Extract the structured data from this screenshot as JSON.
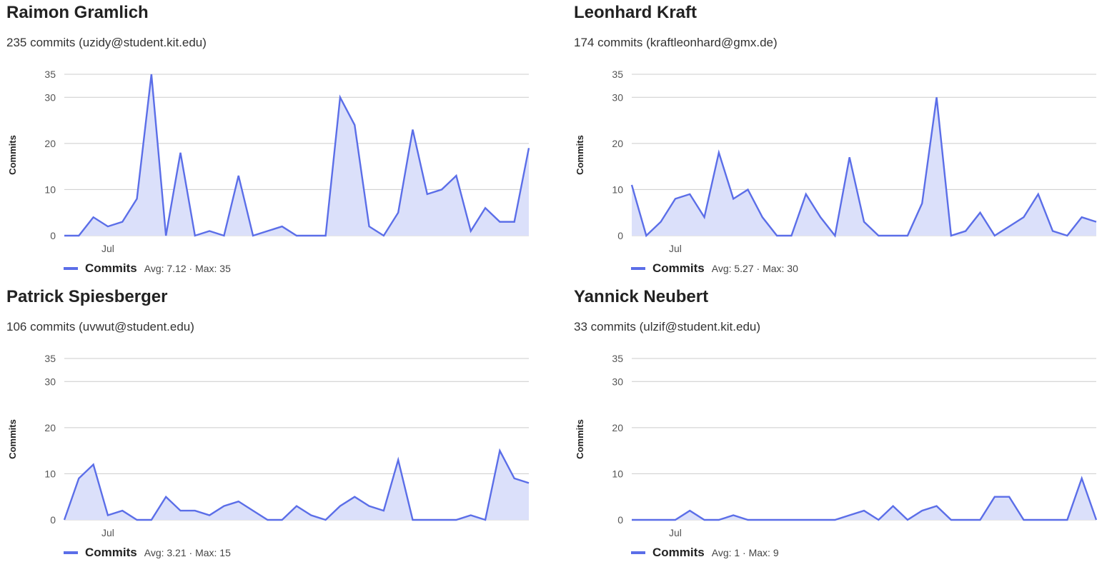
{
  "colors": {
    "line": "#5b6ee8",
    "fill": "#dbe0fa",
    "grid": "#cccccc"
  },
  "chart_data": [
    {
      "type": "area",
      "title": "Raimon Gramlich",
      "subtitle": "235 commits (uzidy@student.kit.edu)",
      "ylabel": "Commits",
      "xlabel": "",
      "ylim": [
        0,
        35
      ],
      "yticks": [
        0,
        10,
        20,
        30,
        35
      ],
      "xtick_labels": [
        {
          "index": 3,
          "label": "Jul"
        }
      ],
      "grid": true,
      "legend": "bottom-left",
      "series": [
        {
          "name": "Commits",
          "stats": "Avg: 7.12 · Max: 35",
          "values": [
            0,
            0,
            4,
            2,
            3,
            8,
            35,
            0,
            18,
            0,
            1,
            0,
            13,
            0,
            1,
            2,
            0,
            0,
            0,
            30,
            24,
            2,
            0,
            5,
            23,
            9,
            10,
            13,
            1,
            6,
            3,
            3,
            19
          ]
        }
      ]
    },
    {
      "type": "area",
      "title": "Leonhard Kraft",
      "subtitle": "174 commits (kraftleonhard@gmx.de)",
      "ylabel": "Commits",
      "xlabel": "",
      "ylim": [
        0,
        35
      ],
      "yticks": [
        0,
        10,
        20,
        30,
        35
      ],
      "xtick_labels": [
        {
          "index": 3,
          "label": "Jul"
        }
      ],
      "grid": true,
      "legend": "bottom-left",
      "series": [
        {
          "name": "Commits",
          "stats": "Avg: 5.27 · Max: 30",
          "values": [
            11,
            0,
            3,
            8,
            9,
            4,
            18,
            8,
            10,
            4,
            0,
            0,
            9,
            4,
            0,
            17,
            3,
            0,
            0,
            0,
            7,
            30,
            0,
            1,
            5,
            0,
            2,
            4,
            9,
            1,
            0,
            4,
            3
          ]
        }
      ]
    },
    {
      "type": "area",
      "title": "Patrick Spiesberger",
      "subtitle": "106 commits (uvwut@student.edu)",
      "ylabel": "Commits",
      "xlabel": "",
      "ylim": [
        0,
        35
      ],
      "yticks": [
        0,
        10,
        20,
        30,
        35
      ],
      "xtick_labels": [
        {
          "index": 3,
          "label": "Jul"
        }
      ],
      "grid": true,
      "legend": "bottom-left",
      "series": [
        {
          "name": "Commits",
          "stats": "Avg: 3.21 · Max: 15",
          "values": [
            0,
            9,
            12,
            1,
            2,
            0,
            0,
            5,
            2,
            2,
            1,
            3,
            4,
            2,
            0,
            0,
            3,
            1,
            0,
            3,
            5,
            3,
            2,
            13,
            0,
            0,
            0,
            0,
            1,
            0,
            15,
            9,
            8
          ]
        }
      ]
    },
    {
      "type": "area",
      "title": "Yannick Neubert",
      "subtitle": "33 commits (ulzif@student.kit.edu)",
      "ylabel": "Commits",
      "xlabel": "",
      "ylim": [
        0,
        35
      ],
      "yticks": [
        0,
        10,
        20,
        30,
        35
      ],
      "xtick_labels": [
        {
          "index": 3,
          "label": "Jul"
        }
      ],
      "grid": true,
      "legend": "bottom-left",
      "series": [
        {
          "name": "Commits",
          "stats": "Avg: 1 · Max: 9",
          "values": [
            0,
            0,
            0,
            0,
            2,
            0,
            0,
            1,
            0,
            0,
            0,
            0,
            0,
            0,
            0,
            1,
            2,
            0,
            3,
            0,
            2,
            3,
            0,
            0,
            0,
            5,
            5,
            0,
            0,
            0,
            0,
            9,
            0
          ]
        }
      ]
    }
  ]
}
